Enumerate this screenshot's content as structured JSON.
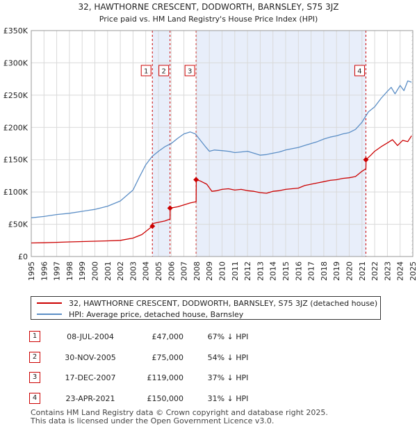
{
  "chart_data": {
    "type": "line",
    "title": "32, HAWTHORNE CRESCENT, DODWORTH, BARNSLEY, S75 3JZ",
    "subtitle": "Price paid vs. HM Land Registry's House Price Index (HPI)",
    "xlim": [
      1995,
      2025
    ],
    "ylim": [
      0,
      350000
    ],
    "xticks": [
      1995,
      1996,
      1997,
      1998,
      1999,
      2000,
      2001,
      2002,
      2003,
      2004,
      2005,
      2006,
      2007,
      2008,
      2009,
      2010,
      2011,
      2012,
      2013,
      2014,
      2015,
      2016,
      2017,
      2018,
      2019,
      2020,
      2021,
      2022,
      2023,
      2024,
      2025
    ],
    "xtick_labels": [
      "1995",
      "1996",
      "1997",
      "1998",
      "1999",
      "2000",
      "2001",
      "2002",
      "2003",
      "2004",
      "2005",
      "2006",
      "2007",
      "2008",
      "2009",
      "2010",
      "2011",
      "2012",
      "2013",
      "2014",
      "2015",
      "2016",
      "2017",
      "2018",
      "2019",
      "2020",
      "2021",
      "2022",
      "2023",
      "2024",
      "2025"
    ],
    "yticks": [
      0,
      50000,
      100000,
      150000,
      200000,
      250000,
      300000,
      350000
    ],
    "ytick_labels": [
      "£0",
      "£50K",
      "£100K",
      "£150K",
      "£200K",
      "£250K",
      "£300K",
      "£350K"
    ],
    "grid": true,
    "series": [
      {
        "name": "32, HAWTHORNE CRESCENT, DODWORTH, BARNSLEY, S75 3JZ (detached house)",
        "color": "#cc0000",
        "x": [
          1995.0,
          1996.0,
          1997.0,
          1998.0,
          1999.0,
          2000.0,
          2001.0,
          2002.0,
          2003.0,
          2003.7,
          2004.52,
          2004.53,
          2005.0,
          2005.5,
          2005.91,
          2005.92,
          2006.5,
          2007.0,
          2007.5,
          2007.96,
          2007.97,
          2008.3,
          2008.8,
          2009.2,
          2009.6,
          2010.0,
          2010.5,
          2011.0,
          2011.5,
          2012.0,
          2012.5,
          2013.0,
          2013.5,
          2014.0,
          2014.5,
          2015.0,
          2015.5,
          2016.0,
          2016.5,
          2017.0,
          2017.5,
          2018.0,
          2018.5,
          2019.0,
          2019.5,
          2020.0,
          2020.5,
          2021.0,
          2021.31,
          2021.32,
          2021.7,
          2022.0,
          2022.5,
          2023.0,
          2023.4,
          2023.8,
          2024.2,
          2024.6,
          2024.9
        ],
        "y": [
          21000,
          21300,
          22000,
          22600,
          23200,
          23700,
          24200,
          25000,
          28500,
          34000,
          47000,
          51000,
          53000,
          55000,
          58000,
          75000,
          77000,
          80000,
          83000,
          85000,
          119000,
          117000,
          112000,
          101000,
          102000,
          104000,
          105000,
          103000,
          104000,
          102000,
          101000,
          99000,
          98000,
          101000,
          102000,
          104000,
          105000,
          106000,
          110000,
          112000,
          114000,
          116000,
          118000,
          119000,
          121000,
          122000,
          124000,
          132000,
          136000,
          150000,
          157000,
          163000,
          170000,
          176000,
          181000,
          172000,
          180000,
          178000,
          187000
        ]
      },
      {
        "name": "HPI: Average price, detached house, Barnsley",
        "color": "#5b8ec6",
        "x": [
          1995.0,
          1996.0,
          1997.0,
          1998.0,
          1999.0,
          2000.0,
          2001.0,
          2002.0,
          2003.0,
          2003.5,
          2004.0,
          2004.5,
          2005.0,
          2005.5,
          2006.0,
          2006.5,
          2007.0,
          2007.5,
          2007.9,
          2008.3,
          2008.7,
          2009.0,
          2009.4,
          2010.0,
          2010.5,
          2011.0,
          2011.5,
          2012.0,
          2012.5,
          2013.0,
          2013.5,
          2014.0,
          2014.5,
          2015.0,
          2015.5,
          2016.0,
          2016.5,
          2017.0,
          2017.5,
          2018.0,
          2018.5,
          2019.0,
          2019.5,
          2020.0,
          2020.5,
          2021.0,
          2021.5,
          2022.0,
          2022.5,
          2023.0,
          2023.3,
          2023.6,
          2024.0,
          2024.3,
          2024.6,
          2024.9
        ],
        "y": [
          60000,
          62000,
          65000,
          67000,
          70000,
          73000,
          78000,
          86000,
          103000,
          123000,
          142000,
          155000,
          163000,
          170000,
          175000,
          183000,
          190000,
          193000,
          190000,
          180000,
          170000,
          163000,
          165000,
          164000,
          163000,
          161000,
          162000,
          163000,
          160000,
          157000,
          158000,
          160000,
          162000,
          165000,
          167000,
          169000,
          172000,
          175000,
          178000,
          182000,
          185000,
          187000,
          190000,
          192000,
          197000,
          208000,
          224000,
          232000,
          245000,
          256000,
          262000,
          252000,
          265000,
          257000,
          272000,
          270000
        ]
      }
    ],
    "sale_markers": [
      {
        "label": "1",
        "x": 2004.52,
        "y": 47000
      },
      {
        "label": "2",
        "x": 2005.91,
        "y": 75000
      },
      {
        "label": "3",
        "x": 2007.96,
        "y": 119000
      },
      {
        "label": "4",
        "x": 2021.31,
        "y": 150000
      }
    ],
    "shaded_ranges": [
      [
        2004.52,
        2005.91
      ],
      [
        2007.96,
        2021.31
      ]
    ],
    "hatched_from": 2024.9
  },
  "legend": {
    "property_label": "32, HAWTHORNE CRESCENT, DODWORTH, BARNSLEY, S75 3JZ (detached house)",
    "hpi_label": "HPI: Average price, detached house, Barnsley"
  },
  "transactions": [
    {
      "num": "1",
      "date": "08-JUL-2004",
      "price": "£47,000",
      "hpi": "67% ↓ HPI"
    },
    {
      "num": "2",
      "date": "30-NOV-2005",
      "price": "£75,000",
      "hpi": "54% ↓ HPI"
    },
    {
      "num": "3",
      "date": "17-DEC-2007",
      "price": "£119,000",
      "hpi": "37% ↓ HPI"
    },
    {
      "num": "4",
      "date": "23-APR-2021",
      "price": "£150,000",
      "hpi": "31% ↓ HPI"
    }
  ],
  "footer": {
    "line1": "Contains HM Land Registry data © Crown copyright and database right 2025.",
    "line2": "This data is licensed under the Open Government Licence v3.0."
  },
  "colors": {
    "property": "#cc0000",
    "hpi": "#5b8ec6",
    "shade": "#e8eefa",
    "grid": "#d9d9d9"
  }
}
